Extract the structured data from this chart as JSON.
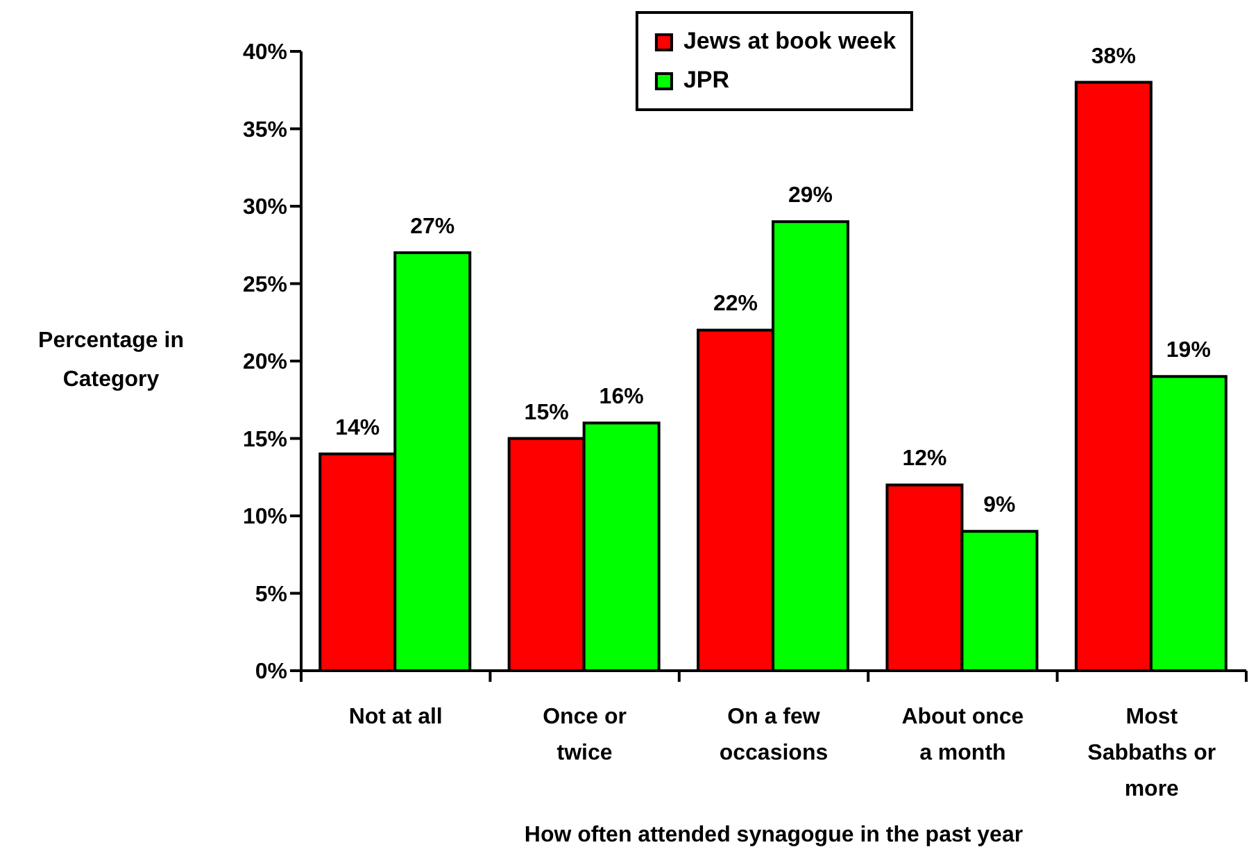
{
  "chart_data": {
    "type": "bar",
    "xlabel": "How often attended synagogue in the past year",
    "ylabel": "Percentage in\nCategory",
    "categories": [
      "Not at all",
      "Once or\ntwice",
      "On a few\noccasions",
      "About once\na month",
      "Most\nSabbaths or\nmore"
    ],
    "series": [
      {
        "name": "Jews at book week",
        "color": "#ff0000",
        "values": [
          14,
          15,
          22,
          12,
          38
        ],
        "value_labels": [
          "14%",
          "15%",
          "22%",
          "12%",
          "38%"
        ]
      },
      {
        "name": "JPR",
        "color": "#00ff00",
        "values": [
          27,
          16,
          29,
          9,
          19
        ],
        "value_labels": [
          "27%",
          "16%",
          "29%",
          "9%",
          "19%"
        ]
      }
    ],
    "ylim": [
      0,
      40
    ],
    "yticks": [
      {
        "value": 0,
        "label": "0%"
      },
      {
        "value": 5,
        "label": "5%"
      },
      {
        "value": 10,
        "label": "10%"
      },
      {
        "value": 15,
        "label": "15%"
      },
      {
        "value": 20,
        "label": "20%"
      },
      {
        "value": 25,
        "label": "25%"
      },
      {
        "value": 30,
        "label": "30%"
      },
      {
        "value": 35,
        "label": "35%"
      },
      {
        "value": 40,
        "label": "40%"
      }
    ],
    "legend": "top"
  }
}
